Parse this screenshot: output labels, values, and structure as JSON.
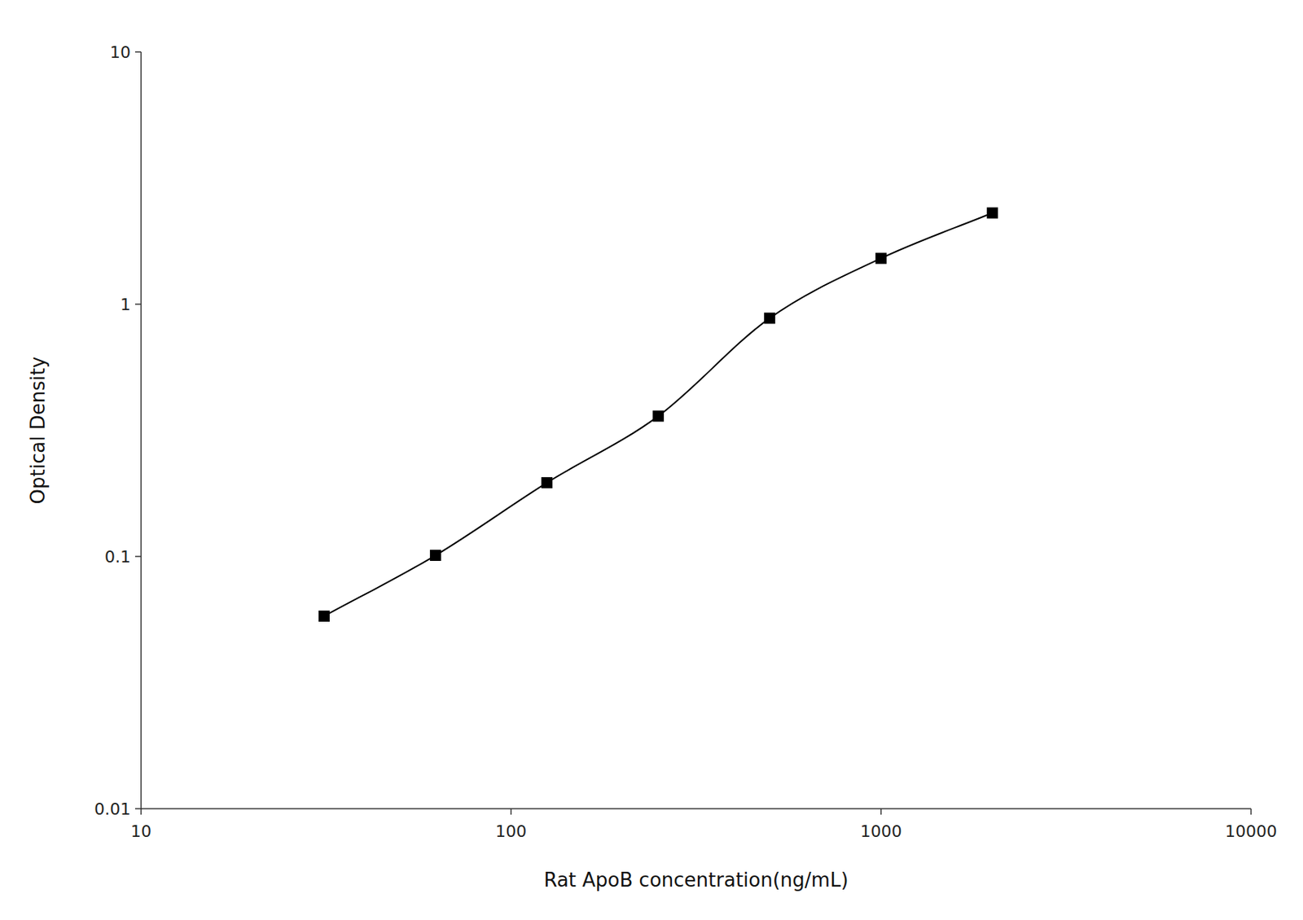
{
  "chart_data": {
    "type": "scatter",
    "x": [
      31.25,
      62.5,
      125,
      250,
      500,
      1000,
      2000
    ],
    "values": [
      0.058,
      0.101,
      0.196,
      0.36,
      0.88,
      1.52,
      2.3
    ],
    "xlabel": "Rat ApoB concentration(ng/mL)",
    "ylabel": "Optical Density",
    "xlim": [
      10,
      10000
    ],
    "ylim": [
      0.01,
      10
    ],
    "xticks": [
      10,
      100,
      1000,
      10000
    ],
    "yticks": [
      0.01,
      0.1,
      1,
      10
    ],
    "log": true,
    "grid": false,
    "marker": "square",
    "line_style": "solid",
    "color": "black"
  }
}
